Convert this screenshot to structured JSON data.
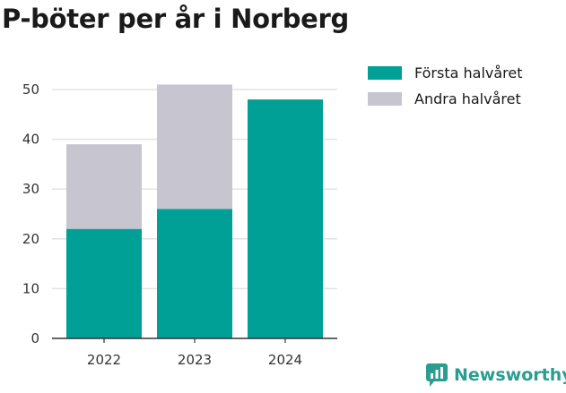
{
  "title": "P-böter per år i Norberg",
  "brand": {
    "name": "Newsworthy"
  },
  "colors": {
    "first_half": "#00a096",
    "second_half": "#c6c5d0",
    "brand": "#2a9d8f"
  },
  "chart_data": {
    "type": "bar",
    "stacked": true,
    "title": "P-böter per år i Norberg",
    "xlabel": "",
    "ylabel": "",
    "categories": [
      "2022",
      "2023",
      "2024"
    ],
    "series": [
      {
        "name": "Första halvåret",
        "values": [
          22,
          26,
          48
        ],
        "color": "#00a096"
      },
      {
        "name": "Andra halvåret",
        "values": [
          17,
          25,
          0
        ],
        "color": "#c6c5d0"
      }
    ],
    "ylim": [
      0,
      50
    ],
    "yticks": [
      0,
      10,
      20,
      30,
      40,
      50
    ],
    "grid": true,
    "legend": "right"
  }
}
